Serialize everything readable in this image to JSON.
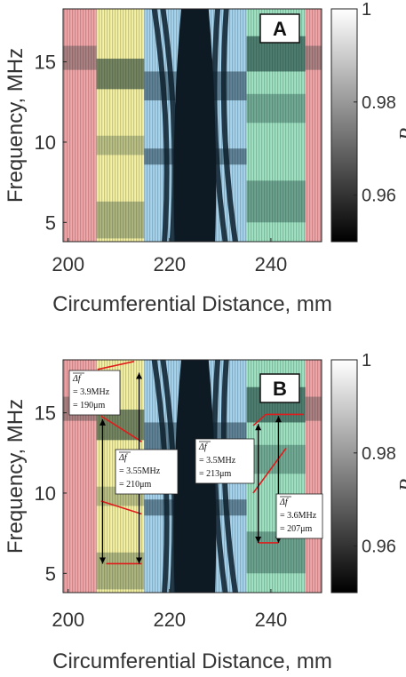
{
  "chart_data": [
    {
      "panel": "A",
      "type": "heatmap",
      "xlabel": "Circumferential Distance, mm",
      "ylabel": "Frequency, MHz",
      "xlim": [
        199,
        250
      ],
      "ylim": [
        3.8,
        18.3
      ],
      "xticks": [
        200,
        220,
        240
      ],
      "yticks": [
        5,
        10,
        15
      ],
      "colorbar": {
        "label": "R",
        "range": [
          0.95,
          1.0
        ],
        "ticks": [
          "1",
          "0.98",
          "0.96"
        ],
        "tick_values": [
          1.0,
          0.98,
          0.96
        ]
      },
      "regions": [
        {
          "name": "red",
          "x0": 199,
          "x1": 205.6,
          "color": "#f2a6a8"
        },
        {
          "name": "yellow",
          "x0": 205.6,
          "x1": 215,
          "color": "#f4f1a2"
        },
        {
          "name": "blue",
          "x0": 215,
          "x1": 235.2,
          "color": "#a6d4ee"
        },
        {
          "name": "green",
          "x0": 235.2,
          "x1": 246.8,
          "color": "#9fe3c3"
        },
        {
          "name": "red",
          "x0": 246.8,
          "x1": 250,
          "color": "#f2a6a8"
        }
      ],
      "dark_core": {
        "x0": 221.5,
        "x1": 228.5
      },
      "annotations": []
    },
    {
      "panel": "B",
      "type": "heatmap",
      "xlabel": "Circumferential Distance, mm",
      "ylabel": "Frequency, MHz",
      "xlim": [
        199,
        250
      ],
      "ylim": [
        3.8,
        18.3
      ],
      "xticks": [
        200,
        220,
        240
      ],
      "yticks": [
        5,
        10,
        15
      ],
      "colorbar": {
        "label": "R",
        "range": [
          0.95,
          1.0
        ],
        "ticks": [
          "1",
          "0.98",
          "0.96"
        ],
        "tick_values": [
          1.0,
          0.98,
          0.96
        ]
      },
      "regions": [
        {
          "name": "red",
          "x0": 199,
          "x1": 205.6,
          "color": "#f2a6a8"
        },
        {
          "name": "yellow",
          "x0": 205.6,
          "x1": 215,
          "color": "#f4f1a2"
        },
        {
          "name": "blue",
          "x0": 215,
          "x1": 235.2,
          "color": "#a6d4ee"
        },
        {
          "name": "green",
          "x0": 235.2,
          "x1": 246.8,
          "color": "#9fe3c3"
        },
        {
          "name": "red",
          "x0": 246.8,
          "x1": 250,
          "color": "#f2a6a8"
        }
      ],
      "dark_core": {
        "x0": 221.5,
        "x1": 228.5
      },
      "annotations": [
        {
          "label_symbol": "Δf",
          "value_line": "= 3.9MHz",
          "thickness_line": "= 190μm"
        },
        {
          "label_symbol": "Δf",
          "value_line": "= 3.55MHz",
          "thickness_line": "= 210μm"
        },
        {
          "label_symbol": "Δf",
          "value_line": "= 3.5MHz",
          "thickness_line": "= 213μm"
        },
        {
          "label_symbol": "Δf",
          "value_line": "= 3.6MHz",
          "thickness_line": "= 207μm"
        }
      ],
      "red_lines": [
        {
          "x": [
            213,
            205.8
          ],
          "y": [
            18.2,
            17.7
          ]
        },
        {
          "x": [
            206.5,
            214.5
          ],
          "y": [
            14.8,
            13.2
          ]
        },
        {
          "x": [
            206.5,
            214.5
          ],
          "y": [
            9.5,
            8.7
          ]
        },
        {
          "x": [
            207.5,
            214.5
          ],
          "y": [
            5.6,
            5.6
          ]
        },
        {
          "x": [
            236.5,
            239
          ],
          "y": [
            14.2,
            14.9
          ]
        },
        {
          "x": [
            239,
            246.5
          ],
          "y": [
            14.9,
            14.9
          ]
        },
        {
          "x": [
            236.5,
            243
          ],
          "y": [
            10.0,
            12.8
          ]
        },
        {
          "x": [
            237.5,
            241.5
          ],
          "y": [
            6.9,
            6.9
          ]
        }
      ],
      "arrows": [
        {
          "x": 214,
          "y": [
            5.6,
            17.5
          ]
        },
        {
          "x": 206.8,
          "y": [
            5.6,
            14.6
          ]
        },
        {
          "x": 237.5,
          "y": [
            6.9,
            14.3
          ]
        },
        {
          "x": 241.5,
          "y": [
            6.9,
            14.8
          ]
        }
      ]
    }
  ]
}
